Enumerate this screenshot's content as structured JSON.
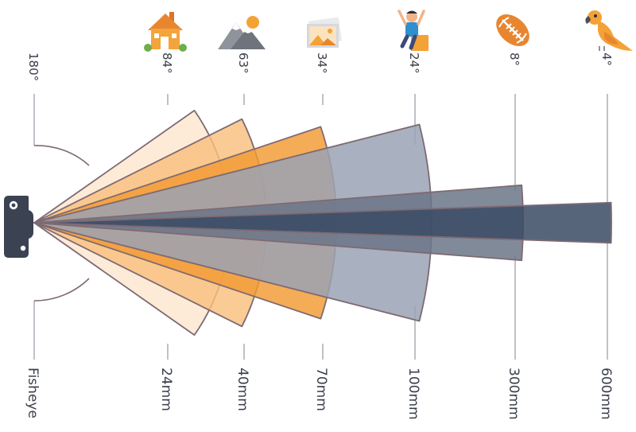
{
  "colors": {
    "outline": "#7e6a72",
    "fisheye_arc": "#7e6a72",
    "guide": "#9aa0aa",
    "camera": "#3b4352"
  },
  "lenses": [
    {
      "focal": "Fisheye",
      "angle": "180°",
      "subject": "",
      "icon": "",
      "fill": ""
    },
    {
      "focal": "24mm",
      "angle": "84°",
      "subject": "house",
      "icon": "house-icon",
      "fill": "#fde7cf"
    },
    {
      "focal": "40mm",
      "angle": "63°",
      "subject": "mountains",
      "icon": "mountain-icon",
      "fill": "#f9c07e"
    },
    {
      "focal": "70mm",
      "angle": "34°",
      "subject": "picture",
      "icon": "picture-icon",
      "fill": "#f39a32"
    },
    {
      "focal": "100mm",
      "angle": "24°",
      "subject": "person",
      "icon": "person-icon",
      "fill": "#9aa2b4"
    },
    {
      "focal": "300mm",
      "angle": "8°",
      "subject": "football",
      "icon": "football-icon",
      "fill": "#6b7587"
    },
    {
      "focal": "600mm",
      "angle": "4°",
      "subject": "parrot",
      "icon": "parrot-icon",
      "fill": "#3a4a64"
    }
  ]
}
